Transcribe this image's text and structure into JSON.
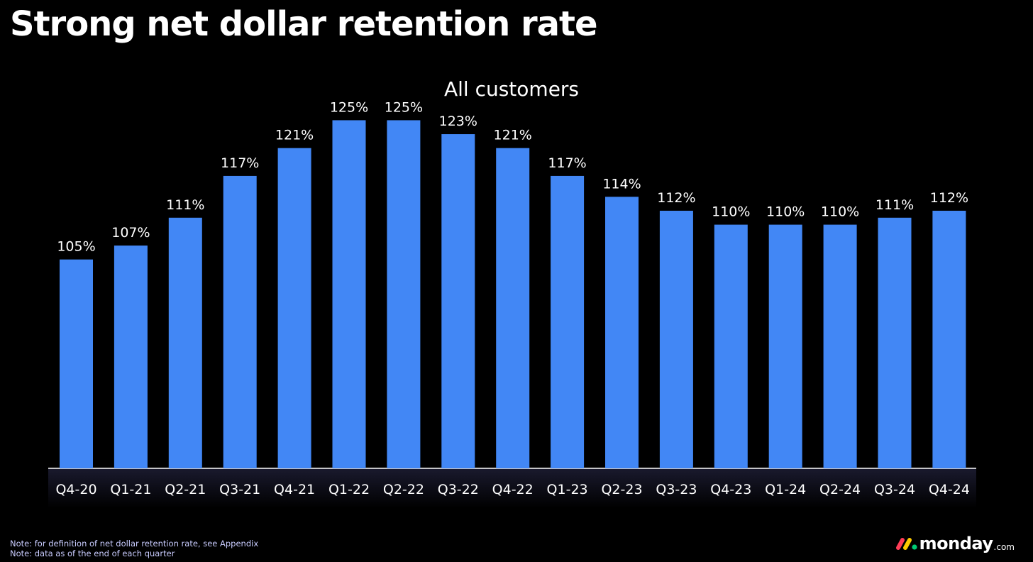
{
  "page": {
    "title": "Strong net dollar retention rate",
    "notes": [
      "Note: for definition of net dollar retention rate, see Appendix",
      "Note: data as of the end of each quarter"
    ]
  },
  "logo": {
    "name": "monday-logo",
    "wordmark": "monday",
    "domain": ".com",
    "colors": [
      "#ff3d57",
      "#ffcb00",
      "#00ca72"
    ]
  },
  "chart_data": {
    "type": "bar",
    "title": "All customers",
    "xlabel": "",
    "ylabel": "",
    "grid": false,
    "ylim": [
      75,
      128
    ],
    "bar_color": "#4287f5",
    "axis_band_color": "#0d0d1a",
    "categories": [
      "Q4-20",
      "Q1-21",
      "Q2-21",
      "Q3-21",
      "Q4-21",
      "Q1-22",
      "Q2-22",
      "Q3-22",
      "Q4-22",
      "Q1-23",
      "Q2-23",
      "Q3-23",
      "Q4-23",
      "Q1-24",
      "Q2-24",
      "Q3-24",
      "Q4-24"
    ],
    "values": [
      105,
      107,
      111,
      117,
      121,
      125,
      125,
      123,
      121,
      117,
      114,
      112,
      110,
      110,
      110,
      111,
      112
    ],
    "data_labels": [
      "105%",
      "107%",
      "111%",
      "117%",
      "121%",
      "125%",
      "125%",
      "123%",
      "121%",
      "117%",
      "114%",
      "112%",
      "110%",
      "110%",
      "110%",
      "111%",
      "112%"
    ]
  }
}
